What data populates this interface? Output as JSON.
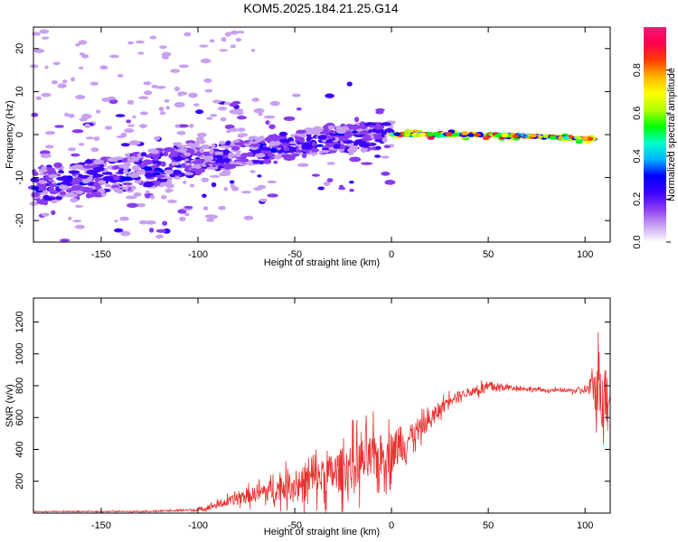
{
  "title": "KOM5.2025.184.21.25.G14",
  "chart_data": [
    {
      "type": "heatmap",
      "xlabel": "Height of straight line (km)",
      "ylabel": "Frequency (Hz)",
      "xlim": [
        -185,
        113
      ],
      "ylim": [
        -25,
        25
      ],
      "xticks": [
        -150,
        -100,
        -50,
        0,
        50,
        100
      ],
      "yticks": [
        -20,
        -10,
        0,
        10,
        20
      ],
      "colorbar": {
        "label": "Normalized spectral amplitude",
        "range": [
          0,
          1
        ],
        "ticks": [
          "0.0",
          "0.2",
          "0.4",
          "0.6",
          "0.8"
        ],
        "colors": [
          "#ffffff",
          "#c8a0f0",
          "#8a3cf0",
          "#3c00ff",
          "#0000ff",
          "#00b4ff",
          "#00ffc8",
          "#00ff00",
          "#b4ff00",
          "#ffff00",
          "#ffb400",
          "#ff3c00",
          "#ff0050",
          "#ff1478"
        ]
      },
      "trend_segments": [
        {
          "x": [
            -185,
            -150,
            -100,
            -60,
            -30,
            0
          ],
          "freq": [
            -12,
            -10,
            -6,
            -3,
            -1,
            0
          ],
          "amplitude": 0.15
        },
        {
          "x": [
            0,
            20,
            50,
            80,
            105
          ],
          "freq": [
            0,
            0,
            0,
            -0.5,
            -1
          ],
          "amplitude": 0.85
        }
      ]
    },
    {
      "type": "line",
      "xlabel": "Height of straight line (km)",
      "ylabel": "SNR (v/v)",
      "xlim": [
        -185,
        113
      ],
      "ylim": [
        0,
        1350
      ],
      "xticks": [
        -150,
        -100,
        -50,
        0,
        50,
        100
      ],
      "yticks": [
        200,
        400,
        600,
        800,
        1000,
        1200
      ],
      "line_color": "#e8312f",
      "series": [
        {
          "x": [
            -185,
            -150,
            -120,
            -100,
            -90,
            -80,
            -70,
            -60,
            -50,
            -40,
            -30,
            -20,
            -10,
            0,
            10,
            20,
            30,
            40,
            50,
            60,
            70,
            80,
            90,
            100,
            105,
            108,
            110,
            112,
            113
          ],
          "values": [
            10,
            10,
            12,
            20,
            50,
            90,
            120,
            150,
            180,
            210,
            250,
            300,
            340,
            380,
            480,
            580,
            720,
            760,
            790,
            790,
            780,
            770,
            770,
            770,
            790,
            820,
            760,
            720,
            770
          ],
          "spread": [
            5,
            5,
            8,
            15,
            40,
            70,
            100,
            140,
            180,
            220,
            260,
            300,
            300,
            250,
            150,
            100,
            60,
            50,
            80,
            30,
            20,
            20,
            20,
            40,
            200,
            550,
            400,
            250,
            100
          ]
        }
      ]
    }
  ]
}
